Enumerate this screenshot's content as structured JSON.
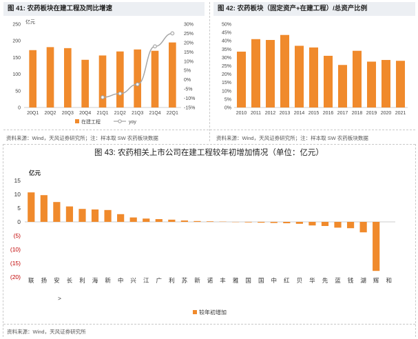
{
  "chart_data": [
    {
      "type": "bar+line",
      "title_prefix": "图 41:",
      "title": "农药板块在建工程及同比增速",
      "unit_label": "亿元",
      "categories": [
        "20Q1",
        "20Q2",
        "20Q3",
        "20Q4",
        "21Q1",
        "21Q2",
        "21Q3",
        "21Q4",
        "22Q1"
      ],
      "bar_series": {
        "name": "在建工程",
        "values": [
          172,
          181,
          178,
          143,
          156,
          168,
          174,
          170,
          195
        ]
      },
      "line_series": {
        "name": "yoy",
        "x_index": [
          4,
          5,
          6,
          7,
          8
        ],
        "values": [
          -9.5,
          -7.5,
          -2.5,
          18,
          25
        ]
      },
      "ylim_left": [
        0,
        250
      ],
      "yticks_left": [
        0,
        50,
        100,
        150,
        200,
        250
      ],
      "ylim_right": [
        -15,
        30
      ],
      "yticks_right": [
        "-15%",
        "-10%",
        "-5%",
        "0%",
        "5%",
        "10%",
        "15%",
        "20%",
        "25%",
        "30%"
      ],
      "source": "资料来源：Wind，天风证券研究所；注：样本取 SW 农药板块数据"
    },
    {
      "type": "bar",
      "title_prefix": "图 42:",
      "title": "农药板块（固定资产+在建工程）/总资产比例",
      "categories": [
        "2010",
        "2011",
        "2012",
        "2013",
        "2014",
        "2015",
        "2016",
        "2017",
        "2018",
        "2019",
        "2020",
        "2021"
      ],
      "values": [
        33.5,
        41,
        40.5,
        43.5,
        37,
        36,
        31,
        25.5,
        34,
        27.5,
        28.5,
        28
      ],
      "ylim": [
        0,
        50
      ],
      "yticks": [
        "0%",
        "5%",
        "10%",
        "15%",
        "20%",
        "25%",
        "30%",
        "35%",
        "40%",
        "45%",
        "50%"
      ],
      "source": "资料来源：Wind，天风证券研究所；注：样本取 SW 农药板块数据"
    },
    {
      "type": "bar",
      "title_prefix": "图 43:",
      "title": "农药相关上市公司在建工程较年初增加情况（单位：亿元）",
      "unit_label": "亿元",
      "categories": [
        "联",
        "扬",
        "安",
        "长",
        "利",
        "海",
        "新",
        "中",
        "兴",
        "江",
        "广",
        "利",
        "苏",
        "新",
        "诺",
        "丰",
        "雅",
        "国",
        "国",
        "中",
        "红",
        "贝",
        "华",
        "先",
        "蓝",
        "钱",
        "湖",
        "辉",
        "和"
      ],
      "values": [
        10.7,
        9.7,
        7.2,
        5.6,
        4.7,
        4.5,
        4.3,
        2.8,
        1.6,
        1.2,
        1.0,
        0.8,
        0.5,
        0.3,
        0.2,
        0.1,
        -0.1,
        -0.2,
        -0.3,
        -0.4,
        -0.5,
        -0.7,
        -1.3,
        -1.5,
        -2.1,
        -2.3,
        -3.8,
        -17.8,
        0
      ],
      "ylim": [
        -20,
        15
      ],
      "yticks": [
        "15",
        "10",
        "5",
        "0",
        "(5)",
        "(10)",
        "(15)",
        "(20)"
      ],
      "legend": "较年初增加",
      "extra_mark": ">",
      "source": "资料来源：Wind，天风证券研究所"
    }
  ],
  "colors": {
    "bar": "#f08a2c",
    "line": "#a6a6a6",
    "negative_tick": "#c00000",
    "title_bg": "#eceff3"
  }
}
